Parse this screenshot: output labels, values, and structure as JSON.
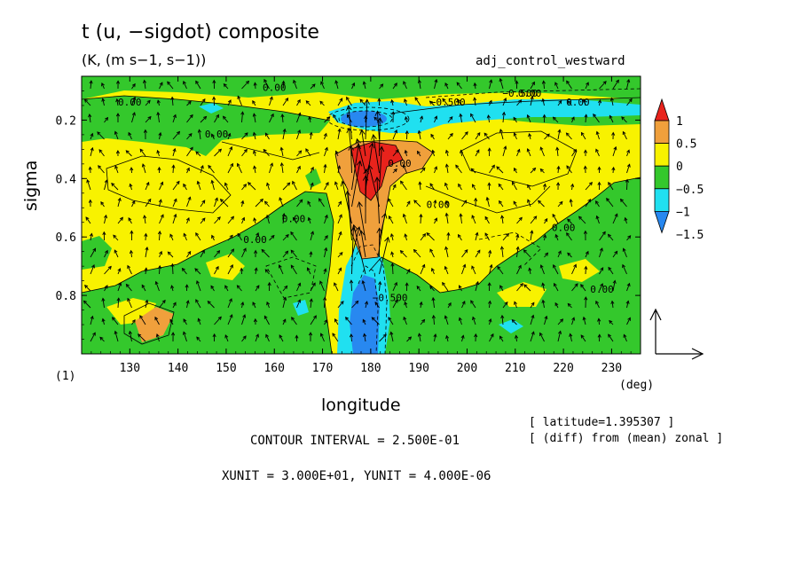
{
  "header": {
    "title": "t (u, −sigdot) composite",
    "units": "(K, (m s−1, s−1))",
    "experiment": "adj_control_westward"
  },
  "footer": {
    "dim_label": "(1)",
    "deg_label": "(deg)",
    "latitude_info": "[ latitude=1.395307 ]",
    "diff_info": "[ (diff) from (mean) zonal ]",
    "contour_interval": "CONTOUR INTERVAL = 2.500E-01",
    "unit_vectors": "XUNIT = 3.000E+01, YUNIT = 4.000E-06"
  },
  "colors": {
    "red": "#e8231c",
    "orange": "#f0a03c",
    "yellow": "#f8f200",
    "green": "#34c82c",
    "cyan": "#20e0f0",
    "blue": "#2888f0"
  },
  "chart_data": {
    "type": "heatmap",
    "title": "t (u, −sigdot) composite",
    "xlabel": "longitude",
    "ylabel": "sigma",
    "xlim": [
      120,
      236
    ],
    "ylim": [
      0.05,
      1.0
    ],
    "y_inverted": true,
    "x_ticks": [
      130,
      140,
      150,
      160,
      170,
      180,
      190,
      200,
      210,
      220,
      230
    ],
    "y_ticks": [
      0.2,
      0.4,
      0.6,
      0.8
    ],
    "colorbar": {
      "levels": [
        1,
        0.5,
        0,
        -0.5,
        -1,
        -1.5
      ],
      "level_labels": [
        "1",
        "0.5",
        "0",
        "−0.5",
        "−1",
        "−1.5"
      ],
      "colors": [
        "#e8231c",
        "#f0a03c",
        "#f8f200",
        "#34c82c",
        "#20e0f0",
        "#2888f0"
      ]
    },
    "contour_labels": [
      {
        "text": "0.00",
        "lon": 148,
        "sigma": 0.26
      },
      {
        "text": "0.00",
        "lon": 156,
        "sigma": 0.62
      },
      {
        "text": "0.00",
        "lon": 164,
        "sigma": 0.55
      },
      {
        "text": "0.00",
        "lon": 160,
        "sigma": 0.1
      },
      {
        "text": "0.00",
        "lon": 130,
        "sigma": 0.15
      },
      {
        "text": "0.00",
        "lon": 213,
        "sigma": 0.12
      },
      {
        "text": "0.00",
        "lon": 223,
        "sigma": 0.15
      },
      {
        "text": "0.00",
        "lon": 220,
        "sigma": 0.58
      },
      {
        "text": "0.00",
        "lon": 228,
        "sigma": 0.79
      },
      {
        "text": "0.00",
        "lon": 186,
        "sigma": 0.36
      },
      {
        "text": "0.00",
        "lon": 194,
        "sigma": 0.5
      },
      {
        "text": "−0.500",
        "lon": 196,
        "sigma": 0.15
      },
      {
        "text": "−0.500",
        "lon": 211,
        "sigma": 0.12
      },
      {
        "text": "−0.500",
        "lon": 184,
        "sigma": 0.82
      }
    ],
    "reference_vector": {
      "xunit": "3.000E+01",
      "yunit": "4.000E-06"
    }
  }
}
